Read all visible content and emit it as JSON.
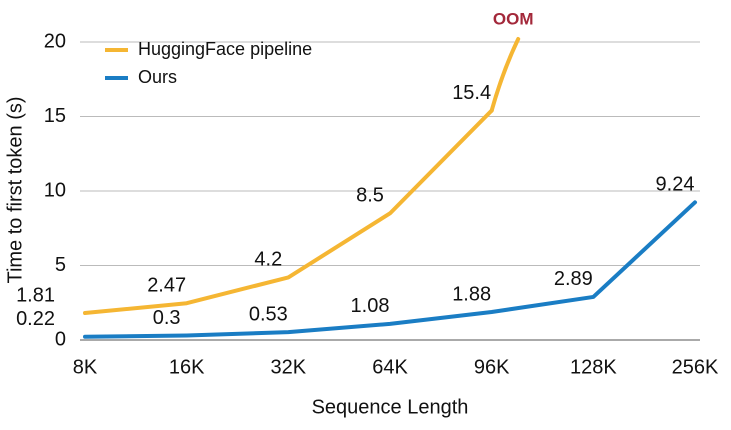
{
  "chart_data": {
    "type": "line",
    "x_label": "Sequence Length",
    "y_label": "Time to first token (s)",
    "categories": [
      "8K",
      "16K",
      "32K",
      "64K",
      "96K",
      "128K",
      "256K"
    ],
    "series": [
      {
        "name": "HuggingFace pipeline",
        "color": "#f5b633",
        "values": [
          1.81,
          2.47,
          4.2,
          8.5,
          15.4,
          null,
          null
        ]
      },
      {
        "name": "Ours",
        "color": "#1a7dc4",
        "values": [
          0.22,
          0.3,
          0.53,
          1.08,
          1.88,
          2.89,
          9.24
        ]
      }
    ],
    "annotation": "OOM",
    "annotation_color": "#a3283a",
    "ylim": [
      0,
      20
    ],
    "yticks": [
      0,
      5,
      10,
      15,
      20
    ],
    "grid": true,
    "legend": "top-left"
  }
}
